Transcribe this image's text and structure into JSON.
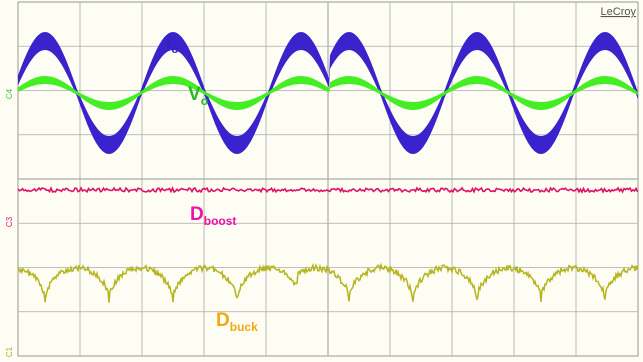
{
  "brand": "LeCroy",
  "channels": [
    "C4",
    "C3",
    "C1"
  ],
  "labels": {
    "current": {
      "main": "I",
      "sub": "o"
    },
    "voltage": {
      "main": "V",
      "sub": "o"
    },
    "boost": {
      "main": "D",
      "sub": "boost"
    },
    "buck": {
      "main": "D",
      "sub": "buck"
    }
  }
}
